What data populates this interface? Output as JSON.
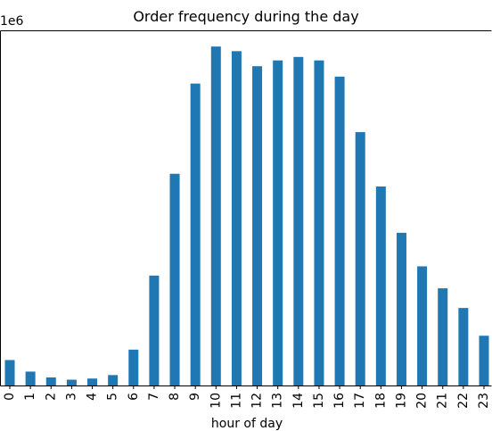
{
  "chart_data": {
    "type": "bar",
    "title": "Order frequency during the day",
    "xlabel": "hour of day",
    "ylabel": "",
    "offset_label": "1e6",
    "categories": [
      "0",
      "1",
      "2",
      "3",
      "4",
      "5",
      "6",
      "7",
      "8",
      "9",
      "10",
      "11",
      "12",
      "13",
      "14",
      "15",
      "16",
      "17",
      "18",
      "19",
      "20",
      "21",
      "22",
      "23"
    ],
    "series": [
      {
        "values": [
          22000,
          12000,
          7000,
          5000,
          6000,
          9000,
          31000,
          95000,
          183000,
          261000,
          293000,
          289000,
          276000,
          281000,
          284000,
          281000,
          267000,
          219000,
          172000,
          132000,
          103000,
          84000,
          67000,
          43000
        ]
      }
    ],
    "ylim": [
      0,
      307000
    ],
    "y_ticks_shown": false,
    "grid": false,
    "legend": "none",
    "color": "#1f77b4"
  }
}
